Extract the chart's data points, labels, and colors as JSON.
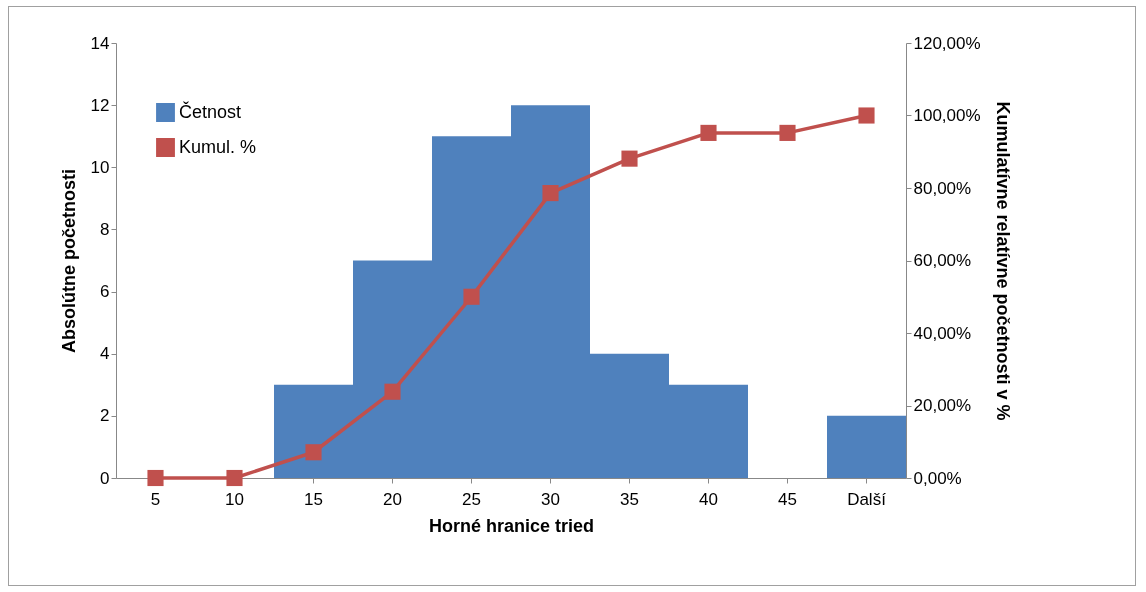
{
  "chart_data": {
    "type": "bar",
    "xlabel": "Horné hranice tried",
    "ylabel": "Absolútne početnosti",
    "y2label": "Kumulatívne relatívne početnosti v %",
    "categories": [
      "5",
      "10",
      "15",
      "20",
      "25",
      "30",
      "35",
      "40",
      "45",
      "Další"
    ],
    "series": [
      {
        "name": "Četnost",
        "color": "#4f81bd",
        "values": [
          0,
          0,
          3,
          7,
          11,
          12,
          4,
          3,
          0,
          2
        ]
      },
      {
        "name": "Kumul. %",
        "type": "line",
        "axis": "y2",
        "color": "#c0504d",
        "values": [
          0,
          0,
          7.1,
          23.8,
          50,
          78.6,
          88.1,
          95.2,
          95.2,
          100
        ]
      }
    ],
    "ylim": [
      0,
      14
    ],
    "yticks": [
      0,
      2,
      4,
      6,
      8,
      10,
      12,
      14
    ],
    "y2lim": [
      0,
      120
    ],
    "y2ticks": [
      {
        "value": 0,
        "label": "0,00%"
      },
      {
        "value": 20,
        "label": "20,00%"
      },
      {
        "value": 40,
        "label": "40,00%"
      },
      {
        "value": 60,
        "label": "60,00%"
      },
      {
        "value": 80,
        "label": "80,00%"
      },
      {
        "value": 100,
        "label": "100,00%"
      },
      {
        "value": 120,
        "label": "120,00%"
      }
    ],
    "marker": "square",
    "grid": false,
    "legend": "top left"
  }
}
